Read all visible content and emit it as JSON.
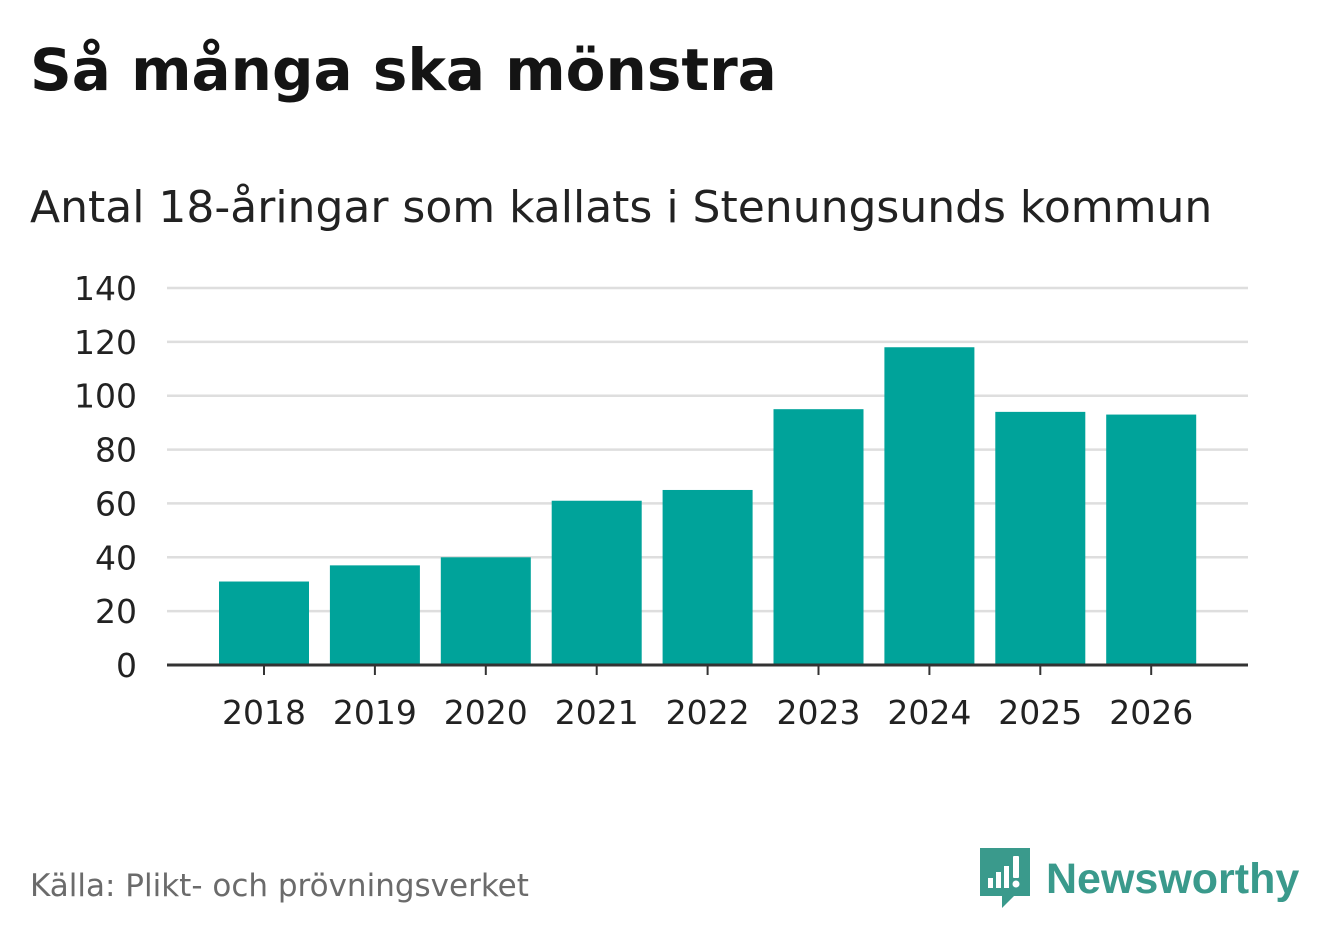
{
  "chart_data": {
    "type": "bar",
    "title": "Så många ska mönstra",
    "subtitle": "Antal 18-åringar som kallats i Stenungsunds kommun",
    "xlabel": "",
    "ylabel": "",
    "categories": [
      "2018",
      "2019",
      "2020",
      "2021",
      "2022",
      "2023",
      "2024",
      "2025",
      "2026"
    ],
    "values": [
      31,
      37,
      40,
      61,
      65,
      95,
      118,
      94,
      93
    ],
    "ylim": [
      0,
      140
    ],
    "yticks": [
      0,
      20,
      40,
      60,
      80,
      100,
      120,
      140
    ],
    "grid": true,
    "legend": "none",
    "bar_color": "#00a39a"
  },
  "footer": {
    "source": "Källa: Plikt- och prövningsverket",
    "brand": "Newsworthy"
  },
  "colors": {
    "brand": "#3a9a8c",
    "grid": "#dedede",
    "axis": "#333333"
  }
}
